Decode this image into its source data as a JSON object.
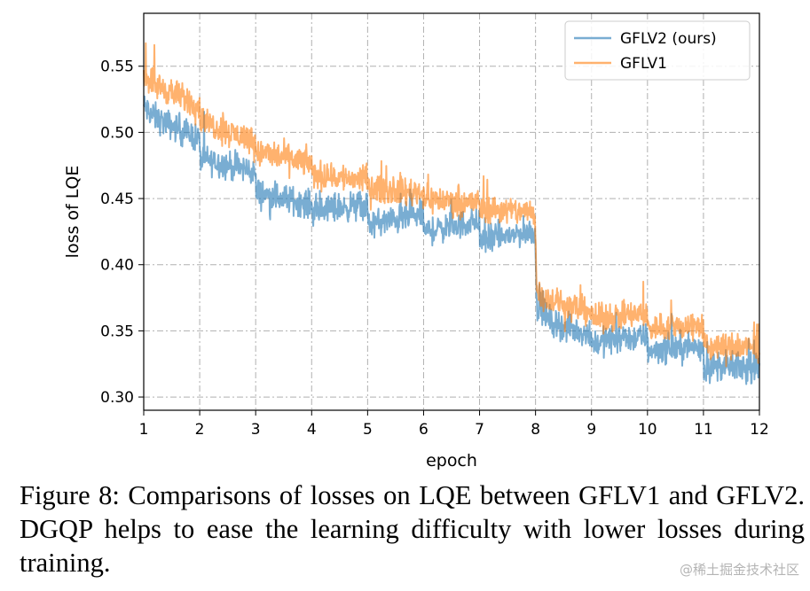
{
  "chart_data": {
    "type": "line",
    "xlabel": "epoch",
    "ylabel": "loss of LQE",
    "xlim": [
      1,
      12
    ],
    "ylim": [
      0.29,
      0.59
    ],
    "xticks": [
      1,
      2,
      3,
      4,
      5,
      6,
      7,
      8,
      9,
      10,
      11,
      12
    ],
    "yticks": [
      0.3,
      0.35,
      0.4,
      0.45,
      0.5,
      0.55
    ],
    "grid": true,
    "legend_position": "top-right",
    "series": [
      {
        "name": "GFLV2 (ours)",
        "color": "#1f77b4",
        "x": [
          1.0,
          1.1,
          1.25,
          1.5,
          1.75,
          1.99,
          2.01,
          2.25,
          2.5,
          2.75,
          2.99,
          3.01,
          3.25,
          3.5,
          3.75,
          3.99,
          4.01,
          4.25,
          4.5,
          4.75,
          4.99,
          5.01,
          5.25,
          5.5,
          5.75,
          5.99,
          6.01,
          6.25,
          6.5,
          6.75,
          6.99,
          7.01,
          7.25,
          7.5,
          7.75,
          7.99,
          8.02,
          8.25,
          8.5,
          8.75,
          8.99,
          9.01,
          9.25,
          9.5,
          9.75,
          9.99,
          10.01,
          10.25,
          10.5,
          10.75,
          10.99,
          11.01,
          11.25,
          11.5,
          11.75,
          12.0
        ],
        "values": [
          0.52,
          0.515,
          0.51,
          0.505,
          0.5,
          0.495,
          0.48,
          0.478,
          0.475,
          0.473,
          0.47,
          0.455,
          0.452,
          0.45,
          0.448,
          0.445,
          0.44,
          0.442,
          0.443,
          0.444,
          0.445,
          0.43,
          0.432,
          0.434,
          0.436,
          0.438,
          0.425,
          0.427,
          0.429,
          0.431,
          0.433,
          0.418,
          0.42,
          0.422,
          0.424,
          0.426,
          0.37,
          0.358,
          0.353,
          0.35,
          0.348,
          0.34,
          0.343,
          0.344,
          0.345,
          0.345,
          0.335,
          0.336,
          0.337,
          0.338,
          0.338,
          0.322,
          0.323,
          0.323,
          0.322,
          0.321
        ],
        "noise": 0.009
      },
      {
        "name": "GFLV1",
        "color": "#ff7f0e",
        "x": [
          1.0,
          1.1,
          1.25,
          1.5,
          1.75,
          1.99,
          2.01,
          2.25,
          2.5,
          2.75,
          2.99,
          3.01,
          3.25,
          3.5,
          3.75,
          3.99,
          4.01,
          4.25,
          4.5,
          4.75,
          4.99,
          5.01,
          5.25,
          5.5,
          5.75,
          5.99,
          6.01,
          6.25,
          6.5,
          6.75,
          6.99,
          7.01,
          7.25,
          7.5,
          7.75,
          7.99,
          8.02,
          8.25,
          8.5,
          8.75,
          8.99,
          9.01,
          9.25,
          9.5,
          9.75,
          9.99,
          10.01,
          10.25,
          10.5,
          10.75,
          10.99,
          11.01,
          11.25,
          11.5,
          11.75,
          12.0
        ],
        "values": [
          0.545,
          0.54,
          0.535,
          0.53,
          0.525,
          0.52,
          0.51,
          0.505,
          0.5,
          0.497,
          0.495,
          0.485,
          0.483,
          0.481,
          0.479,
          0.477,
          0.468,
          0.467,
          0.466,
          0.465,
          0.465,
          0.458,
          0.457,
          0.456,
          0.455,
          0.455,
          0.45,
          0.449,
          0.448,
          0.447,
          0.447,
          0.442,
          0.442,
          0.441,
          0.44,
          0.44,
          0.38,
          0.373,
          0.37,
          0.367,
          0.365,
          0.358,
          0.36,
          0.361,
          0.362,
          0.362,
          0.352,
          0.353,
          0.353,
          0.354,
          0.354,
          0.337,
          0.338,
          0.338,
          0.337,
          0.337
        ],
        "noise": 0.009
      }
    ]
  },
  "caption": "Figure 8: Comparisons of losses on LQE between GFLV1 and GFLV2. DGQP helps to ease the learning difficulty with lower losses during training.",
  "watermark": "@稀土掘金技术社区"
}
